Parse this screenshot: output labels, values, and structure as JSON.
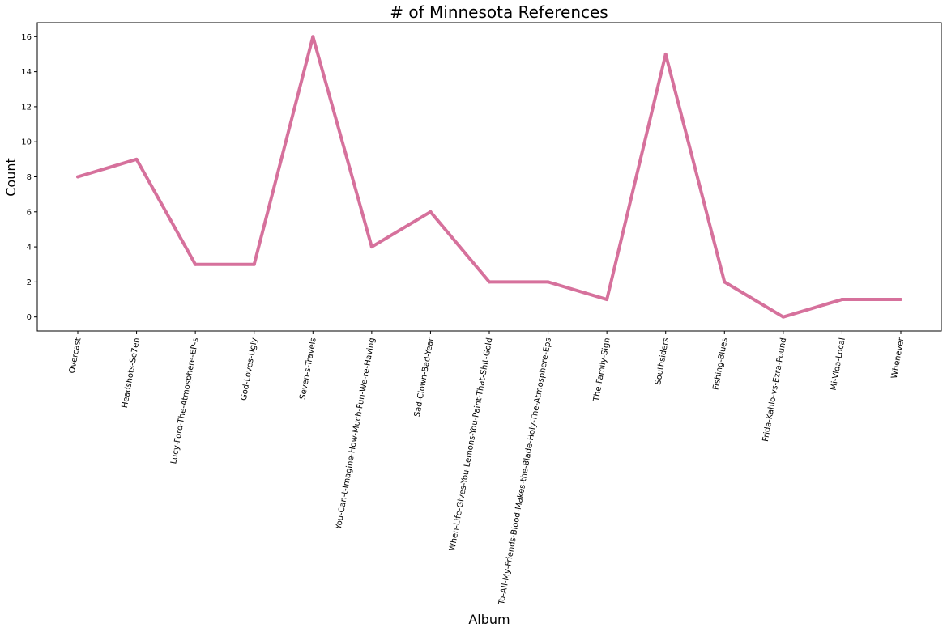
{
  "chart_data": {
    "type": "line",
    "title": "# of Minnesota References",
    "xlabel": "Album",
    "ylabel": "Count",
    "categories": [
      "Overcast",
      "Headshots-Se7en",
      "Lucy-Ford-The-Atmosphere-EP-s",
      "God-Loves-Ugly",
      "Seven-s-Travels",
      "You-Can-t-Imagine-How-Much-Fun-We-re-Having",
      "Sad-Clown-Bad-Year",
      "When-Life-Gives-You-Lemons-You-Paint-That-Shit-Gold",
      "To-All-My-Friends-Blood-Makes-the-Blade-Holy-The-Atmosphere-Eps",
      "The-Family-Sign",
      "Southsiders",
      "Fishing-Blues",
      "Frida-Kahlo-vs-Ezra-Pound",
      "Mi-Vida-Local",
      "Whenever"
    ],
    "values": [
      8,
      9,
      3,
      3,
      16,
      4,
      6,
      2,
      2,
      1,
      15,
      2,
      0,
      1,
      1
    ],
    "yticks": [
      0,
      2,
      4,
      6,
      8,
      10,
      12,
      14,
      16
    ],
    "ylim": [
      -0.8,
      16.8
    ],
    "grid": false,
    "line_color": "#d6719c"
  }
}
